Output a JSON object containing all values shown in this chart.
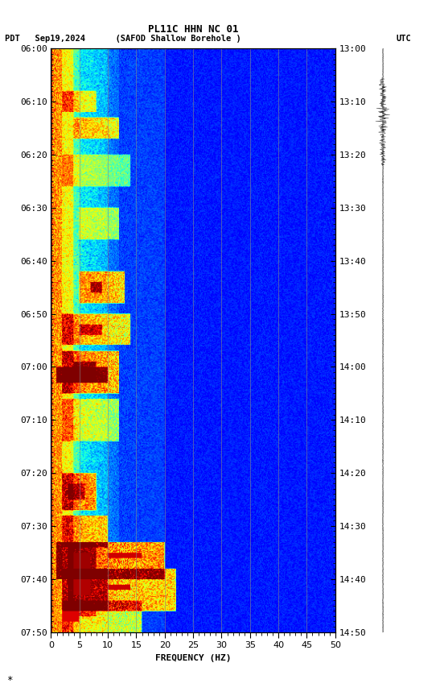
{
  "title_line1": "PL11C HHN NC 01",
  "title_line2_left": "PDT   Sep19,2024      (SAFOD Shallow Borehole )",
  "title_line2_right": "UTC",
  "xlabel": "FREQUENCY (HZ)",
  "freq_min": 0,
  "freq_max": 50,
  "time_labels_pdt": [
    "06:00",
    "06:10",
    "06:20",
    "06:30",
    "06:40",
    "06:50",
    "07:00",
    "07:10",
    "07:20",
    "07:30",
    "07:40",
    "07:50"
  ],
  "time_labels_utc": [
    "13:00",
    "13:10",
    "13:20",
    "13:30",
    "13:40",
    "13:50",
    "14:00",
    "14:10",
    "14:20",
    "14:30",
    "14:40",
    "14:50"
  ],
  "grid_freq_lines": [
    5,
    10,
    15,
    20,
    25,
    30,
    35,
    40,
    45
  ],
  "colormap": "jet",
  "fig_width": 5.52,
  "fig_height": 8.64,
  "dpi": 100
}
